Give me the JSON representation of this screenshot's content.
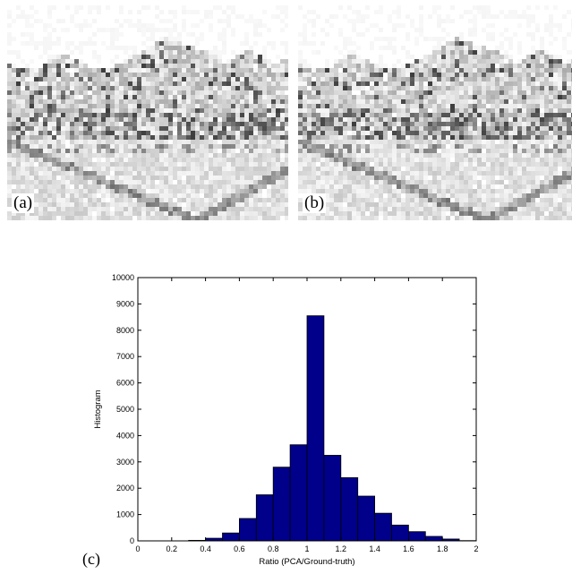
{
  "panels": {
    "a": {
      "label": "(a)"
    },
    "b": {
      "label": "(b)"
    },
    "c": {
      "label": "(c)"
    }
  },
  "chart_data": {
    "type": "bar",
    "title": "",
    "xlabel": "Ratio (PCA/Ground-truth)",
    "ylabel": "Histogram",
    "xlim": [
      0,
      2
    ],
    "ylim": [
      0,
      10000
    ],
    "xticks": [
      "0",
      "0.2",
      "0.4",
      "0.6",
      "0.8",
      "1",
      "1.2",
      "1.4",
      "1.6",
      "1.8",
      "2"
    ],
    "yticks": [
      "0",
      "1000",
      "2000",
      "3000",
      "4000",
      "5000",
      "6000",
      "7000",
      "8000",
      "9000",
      "10000"
    ],
    "bin_width": 0.1,
    "bin_centers": [
      0.35,
      0.45,
      0.55,
      0.65,
      0.75,
      0.85,
      0.95,
      1.05,
      1.15,
      1.25,
      1.35,
      1.45,
      1.55,
      1.65,
      1.75
    ],
    "values": [
      20,
      100,
      300,
      850,
      1750,
      2800,
      3650,
      8550,
      3250,
      2400,
      1700,
      1050,
      600,
      350,
      170
    ],
    "extra_values": [
      70,
      10
    ],
    "extra_centers": [
      1.85,
      1.95
    ],
    "bar_color": "#00008b",
    "bar_edge_color": "#000000",
    "grid": false
  }
}
